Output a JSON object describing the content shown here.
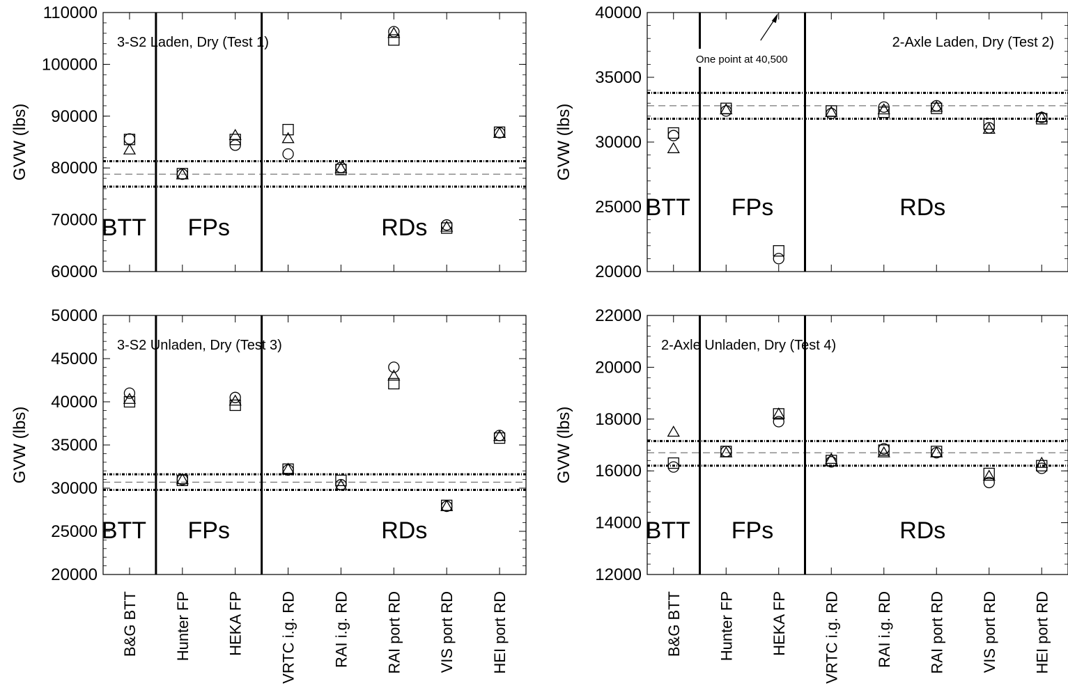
{
  "chart_data": [
    {
      "type": "scatter",
      "title": "3-S2 Laden, Dry (Test 1)",
      "ylabel": "GVW (lbs)",
      "ylim": [
        60000,
        110000
      ],
      "yticks": [
        60000,
        70000,
        80000,
        90000,
        100000,
        110000
      ],
      "show_xticklabels": false,
      "categories": [
        "B&G BTT",
        "Hunter FP",
        "HEKA FP",
        "VRTC i.g. RD",
        "RAI i.g. RD",
        "RAI port RD",
        "VIS port RD",
        "HEI port RD"
      ],
      "groups": [
        "BTT",
        "FPs",
        "RDs"
      ],
      "reference_lines": {
        "mean": 78800,
        "upper": 81300,
        "lower": 76400
      },
      "series": [
        {
          "marker": "circle",
          "values": [
            85600,
            78800,
            84400,
            82700,
            80100,
            106300,
            69000,
            86800
          ]
        },
        {
          "marker": "square",
          "values": [
            85500,
            78900,
            85500,
            87400,
            79700,
            104700,
            68400,
            86900
          ]
        },
        {
          "marker": "triangle",
          "values": [
            83500,
            78700,
            86300,
            85700,
            79900,
            106000,
            68600,
            86700
          ]
        }
      ],
      "annotation": null
    },
    {
      "type": "scatter",
      "title": "2-Axle Laden, Dry (Test 2)",
      "ylabel": "GVW (lbs)",
      "ylim": [
        20000,
        40000
      ],
      "yticks": [
        20000,
        25000,
        30000,
        35000,
        40000
      ],
      "show_xticklabels": false,
      "categories": [
        "B&G BTT",
        "Hunter FP",
        "HEKA FP",
        "VRTC i.g. RD",
        "RAI i.g. RD",
        "RAI port RD",
        "VIS port RD",
        "HEI port RD"
      ],
      "groups": [
        "BTT",
        "FPs",
        "RDs"
      ],
      "reference_lines": {
        "mean": 32800,
        "upper": 33800,
        "lower": 31800
      },
      "series": [
        {
          "marker": "circle",
          "values": [
            30500,
            32400,
            21000,
            32200,
            32700,
            32800,
            31100,
            31900
          ]
        },
        {
          "marker": "square",
          "values": [
            30700,
            32600,
            21600,
            32400,
            32300,
            32600,
            31400,
            31800
          ]
        },
        {
          "marker": "triangle",
          "values": [
            29500,
            32500,
            null,
            32300,
            32500,
            32700,
            31000,
            31900
          ]
        }
      ],
      "annotation": {
        "text": "One point at 40,500",
        "category": "HEKA FP"
      }
    },
    {
      "type": "scatter",
      "title": "3-S2 Unladen, Dry (Test 3)",
      "ylabel": "GVW (lbs)",
      "ylim": [
        20000,
        50000
      ],
      "yticks": [
        20000,
        25000,
        30000,
        35000,
        40000,
        45000,
        50000
      ],
      "show_xticklabels": true,
      "categories": [
        "B&G BTT",
        "Hunter FP",
        "HEKA FP",
        "VRTC i.g. RD",
        "RAI i.g. RD",
        "RAI port RD",
        "VIS port RD",
        "HEI port RD"
      ],
      "groups": [
        "BTT",
        "FPs",
        "RDs"
      ],
      "reference_lines": {
        "mean": 30700,
        "upper": 31600,
        "lower": 29800
      },
      "series": [
        {
          "marker": "circle",
          "values": [
            41000,
            31000,
            40500,
            32100,
            30400,
            44000,
            27900,
            36100
          ]
        },
        {
          "marker": "square",
          "values": [
            40000,
            30900,
            39600,
            32200,
            30900,
            42100,
            28000,
            35800
          ]
        },
        {
          "marker": "triangle",
          "values": [
            40300,
            31000,
            40100,
            32200,
            30300,
            43000,
            27900,
            36000
          ]
        }
      ],
      "annotation": null
    },
    {
      "type": "scatter",
      "title": "2-Axle Unladen, Dry (Test 4)",
      "ylabel": "GVW (lbs)",
      "ylim": [
        12000,
        22000
      ],
      "yticks": [
        12000,
        14000,
        16000,
        18000,
        20000,
        22000
      ],
      "show_xticklabels": true,
      "categories": [
        "B&G BTT",
        "Hunter FP",
        "HEKA FP",
        "VRTC i.g. RD",
        "RAI i.g. RD",
        "RAI port RD",
        "VIS port RD",
        "HEI port RD"
      ],
      "groups": [
        "BTT",
        "FPs",
        "RDs"
      ],
      "reference_lines": {
        "mean": 16700,
        "upper": 17150,
        "lower": 16200
      },
      "series": [
        {
          "marker": "circle",
          "values": [
            16150,
            16750,
            17900,
            16350,
            16850,
            16700,
            15550,
            16100
          ]
        },
        {
          "marker": "square",
          "values": [
            16300,
            16750,
            18200,
            16400,
            16800,
            16750,
            15900,
            16200
          ]
        },
        {
          "marker": "triangle",
          "values": [
            17500,
            16700,
            18200,
            16450,
            16700,
            16700,
            15800,
            16300
          ]
        }
      ],
      "annotation": null
    }
  ]
}
